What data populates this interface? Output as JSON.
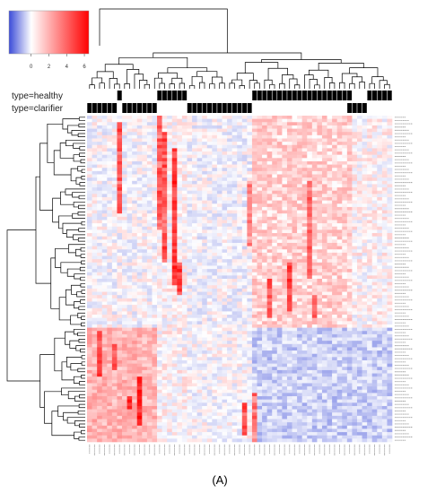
{
  "panel_label": "(A)",
  "colors": {
    "low": "#3b4bd8",
    "mid": "#ffffff",
    "high": "#ff0000",
    "annotation_on": "#000000",
    "annotation_off": "#ffffff",
    "dendrogram": "#000000"
  },
  "chart_data": {
    "type": "heatmap",
    "title": "",
    "xlabel": "",
    "ylabel": "",
    "color_scale": {
      "ticks": [
        0,
        2,
        4,
        6
      ],
      "tick_labels": [
        "0",
        "2",
        "4",
        "6"
      ],
      "range": [
        -2.5,
        6.5
      ]
    },
    "annotation_rows": [
      {
        "name": "type=healthy"
      },
      {
        "name": "type=clarifier"
      }
    ],
    "n_columns": 61,
    "n_rows": 100,
    "dendrograms": {
      "row": true,
      "column": true
    },
    "legend_position": "top-left"
  }
}
